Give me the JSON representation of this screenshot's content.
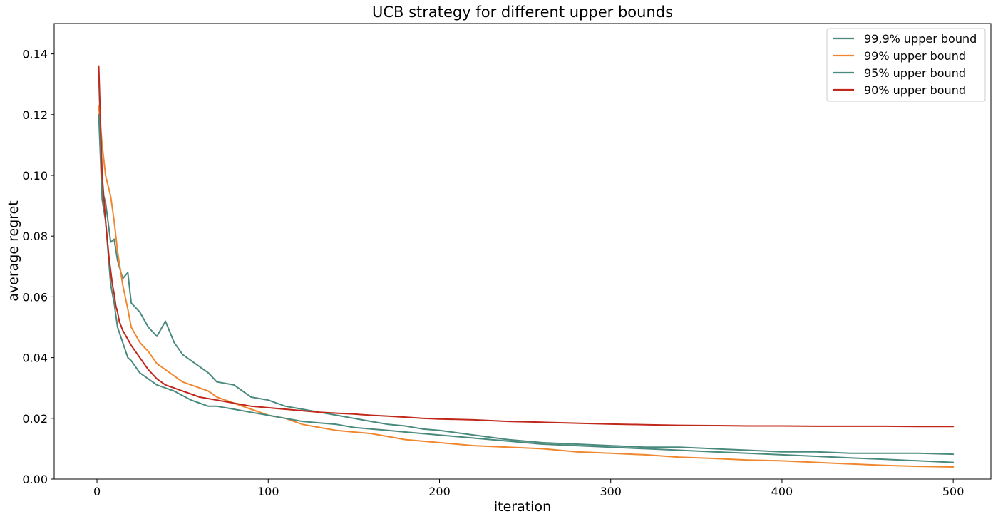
{
  "chart_data": {
    "type": "line",
    "title": "UCB strategy for different upper bounds",
    "xlabel": "iteration",
    "ylabel": "average regret",
    "xlim": [
      -25,
      522
    ],
    "ylim": [
      0,
      0.15
    ],
    "xticks": [
      0,
      100,
      200,
      300,
      400,
      500
    ],
    "xtick_labels": [
      "0",
      "100",
      "200",
      "300",
      "400",
      "500"
    ],
    "yticks": [
      0,
      0.02,
      0.04,
      0.06,
      0.08,
      0.1,
      0.12,
      0.14
    ],
    "ytick_labels": [
      "0.00",
      "0.02",
      "0.04",
      "0.06",
      "0.08",
      "0.10",
      "0.12",
      "0.14"
    ],
    "grid": false,
    "legend_position": "top-right",
    "series": [
      {
        "name": "99,9% upper bound",
        "color": "#4a8a7e",
        "x": [
          1,
          3,
          5,
          8,
          10,
          12,
          15,
          18,
          20,
          25,
          30,
          35,
          40,
          45,
          50,
          55,
          60,
          65,
          70,
          80,
          90,
          100,
          110,
          120,
          130,
          140,
          150,
          160,
          170,
          180,
          190,
          200,
          220,
          240,
          260,
          280,
          300,
          320,
          340,
          360,
          380,
          400,
          420,
          440,
          460,
          480,
          500
        ],
        "y": [
          0.134,
          0.095,
          0.091,
          0.078,
          0.079,
          0.072,
          0.066,
          0.068,
          0.058,
          0.055,
          0.05,
          0.047,
          0.052,
          0.045,
          0.041,
          0.039,
          0.037,
          0.035,
          0.032,
          0.031,
          0.027,
          0.026,
          0.024,
          0.023,
          0.022,
          0.021,
          0.02,
          0.019,
          0.018,
          0.0175,
          0.0165,
          0.016,
          0.0145,
          0.013,
          0.012,
          0.0115,
          0.011,
          0.0105,
          0.0105,
          0.01,
          0.0095,
          0.009,
          0.009,
          0.0085,
          0.0085,
          0.0085,
          0.0082
        ]
      },
      {
        "name": "99% upper bound",
        "color": "#f0872e",
        "x": [
          1,
          3,
          5,
          8,
          10,
          12,
          15,
          18,
          20,
          25,
          30,
          35,
          40,
          45,
          50,
          55,
          60,
          65,
          70,
          80,
          90,
          100,
          110,
          120,
          130,
          140,
          150,
          160,
          170,
          180,
          190,
          200,
          220,
          240,
          260,
          280,
          300,
          320,
          340,
          360,
          380,
          400,
          420,
          440,
          460,
          480,
          500
        ],
        "y": [
          0.123,
          0.11,
          0.1,
          0.093,
          0.085,
          0.075,
          0.064,
          0.056,
          0.05,
          0.045,
          0.042,
          0.038,
          0.036,
          0.034,
          0.032,
          0.031,
          0.03,
          0.029,
          0.027,
          0.025,
          0.023,
          0.021,
          0.02,
          0.018,
          0.017,
          0.016,
          0.0155,
          0.015,
          0.014,
          0.013,
          0.0125,
          0.012,
          0.011,
          0.0105,
          0.01,
          0.009,
          0.0085,
          0.008,
          0.0072,
          0.0068,
          0.0063,
          0.006,
          0.0055,
          0.005,
          0.0045,
          0.0042,
          0.004
        ]
      },
      {
        "name": "95% upper bound",
        "color": "#4a8a7e",
        "x": [
          1,
          3,
          5,
          8,
          10,
          12,
          15,
          18,
          20,
          25,
          30,
          35,
          40,
          45,
          50,
          55,
          60,
          65,
          70,
          80,
          90,
          100,
          110,
          120,
          130,
          140,
          150,
          160,
          170,
          180,
          190,
          200,
          220,
          240,
          260,
          280,
          300,
          320,
          340,
          360,
          380,
          400,
          420,
          440,
          460,
          480,
          500
        ],
        "y": [
          0.12,
          0.092,
          0.085,
          0.064,
          0.058,
          0.05,
          0.045,
          0.04,
          0.039,
          0.035,
          0.033,
          0.031,
          0.03,
          0.029,
          0.0275,
          0.026,
          0.025,
          0.024,
          0.024,
          0.023,
          0.022,
          0.021,
          0.02,
          0.019,
          0.0185,
          0.018,
          0.017,
          0.0165,
          0.016,
          0.0155,
          0.015,
          0.0145,
          0.0135,
          0.0125,
          0.0115,
          0.011,
          0.0105,
          0.01,
          0.0095,
          0.009,
          0.0085,
          0.008,
          0.0075,
          0.007,
          0.0065,
          0.006,
          0.0055
        ]
      },
      {
        "name": "90% upper bound",
        "color": "#c0281b",
        "x": [
          1,
          2,
          3,
          5,
          7,
          9,
          10,
          11,
          12,
          13,
          15,
          18,
          20,
          25,
          30,
          35,
          40,
          45,
          50,
          60,
          70,
          80,
          90,
          100,
          110,
          120,
          130,
          140,
          150,
          160,
          170,
          180,
          190,
          200,
          220,
          240,
          260,
          280,
          300,
          320,
          340,
          360,
          380,
          400,
          420,
          440,
          460,
          480,
          500
        ],
        "y": [
          0.136,
          0.118,
          0.1,
          0.085,
          0.073,
          0.064,
          0.061,
          0.057,
          0.055,
          0.052,
          0.049,
          0.046,
          0.044,
          0.04,
          0.036,
          0.033,
          0.031,
          0.03,
          0.029,
          0.027,
          0.026,
          0.025,
          0.024,
          0.0235,
          0.023,
          0.0225,
          0.022,
          0.0217,
          0.0214,
          0.021,
          0.0207,
          0.0204,
          0.02,
          0.0198,
          0.0195,
          0.019,
          0.0187,
          0.0184,
          0.0181,
          0.0179,
          0.0177,
          0.0176,
          0.0175,
          0.0175,
          0.0174,
          0.0174,
          0.0174,
          0.0173,
          0.0173
        ]
      }
    ]
  }
}
